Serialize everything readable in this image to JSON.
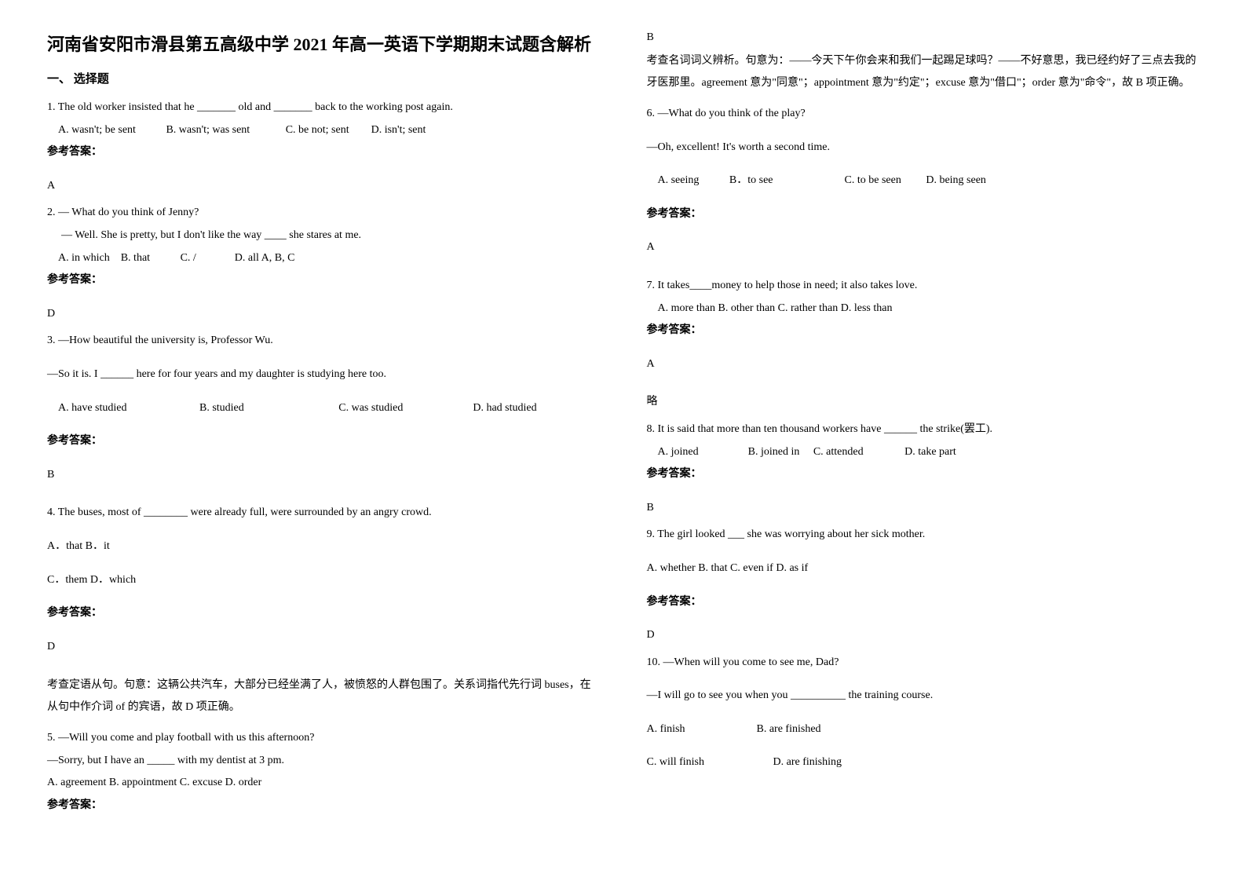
{
  "title": "河南省安阳市滑县第五高级中学 2021 年高一英语下学期期末试题含解析",
  "section_header": "一、 选择题",
  "left": {
    "q1": {
      "text": "1. The old worker insisted that he _______ old and _______ back to the working post again.",
      "optA": "A. wasn't; be sent",
      "optB": "B. wasn't; was sent",
      "optC": "C.  be not; sent",
      "optD": "D. isn't; sent",
      "answer_label": "参考答案：",
      "answer": "A"
    },
    "q2": {
      "line1": "2. — What do you think of Jenny?",
      "line2": "— Well. She is pretty, but I don't like the way ____ she stares at me.",
      "optA": "A. in which",
      "optB": "B. that",
      "optC": "C. /",
      "optD": "D. all A, B, C",
      "answer_label": "参考答案：",
      "answer": "D"
    },
    "q3": {
      "line1": "3. —How beautiful the university is, Professor Wu.",
      "line2": "—So it is. I ______ here for four years and my daughter is studying here too.",
      "optA": "A. have studied",
      "optB": "B. studied",
      "optC": "C. was studied",
      "optD": "D. had studied",
      "answer_label": "参考答案：",
      "answer": "B"
    },
    "q4": {
      "text": "4. The buses, most of ________ were already full, were surrounded by an angry crowd.",
      "optAB": "A．that   B．it",
      "optCD": "C．them   D．which",
      "answer_label": "参考答案：",
      "answer": "D",
      "explanation": "考查定语从句。句意：这辆公共汽车，大部分已经坐满了人，被愤怒的人群包围了。关系词指代先行词 buses，在从句中作介词 of 的宾语，故 D 项正确。"
    },
    "q5": {
      "line1": "5. —Will you come and play football with us this afternoon?",
      "line2": "—Sorry, but I have an _____ with my dentist at 3 pm.",
      "options": "A. agreement     B. appointment    C. excuse     D. order",
      "answer_label": "参考答案："
    }
  },
  "right": {
    "q5_answer": "B",
    "q5_explanation": "考查名词词义辨析。句意为：——今天下午你会来和我们一起踢足球吗？——不好意思，我已经约好了三点去我的牙医那里。agreement 意为\"同意\"；appointment 意为\"约定\"；excuse 意为\"借口\"；order 意为\"命令\"，故 B 项正确。",
    "q6": {
      "line1": "6. —What do you think of the play?",
      "line2": "—Oh, excellent! It's worth       a second time.",
      "optA": "A. seeing",
      "optB": "B．to see",
      "optC": "C. to be seen",
      "optD": "D. being seen",
      "answer_label": "参考答案：",
      "answer": "A"
    },
    "q7": {
      "text": "7. It takes____money to help those in need; it also takes love.",
      "options": "A. more than   B. other than   C. rather than   D. less than",
      "answer_label": "参考答案：",
      "answer": "A",
      "note": "略"
    },
    "q8": {
      "text": "8. It is said that more than ten thousand workers have ______ the strike(罢工).",
      "optA": "A. joined",
      "optB": "B. joined in",
      "optC": "C. attended",
      "optD": "D. take part",
      "answer_label": "参考答案：",
      "answer": "B"
    },
    "q9": {
      "text": "9. The girl looked ___ she was worrying about her sick mother.",
      "options": "A. whether     B. that       C. even if    D. as if",
      "answer_label": "参考答案：",
      "answer": "D"
    },
    "q10": {
      "line1": "10. —When will you come to see me, Dad?",
      "line2": "—I will go to see you when you __________ the training course.",
      "optA": "A. finish",
      "optB": "B. are finished",
      "optC": "C. will finish",
      "optD": "D. are finishing"
    }
  }
}
